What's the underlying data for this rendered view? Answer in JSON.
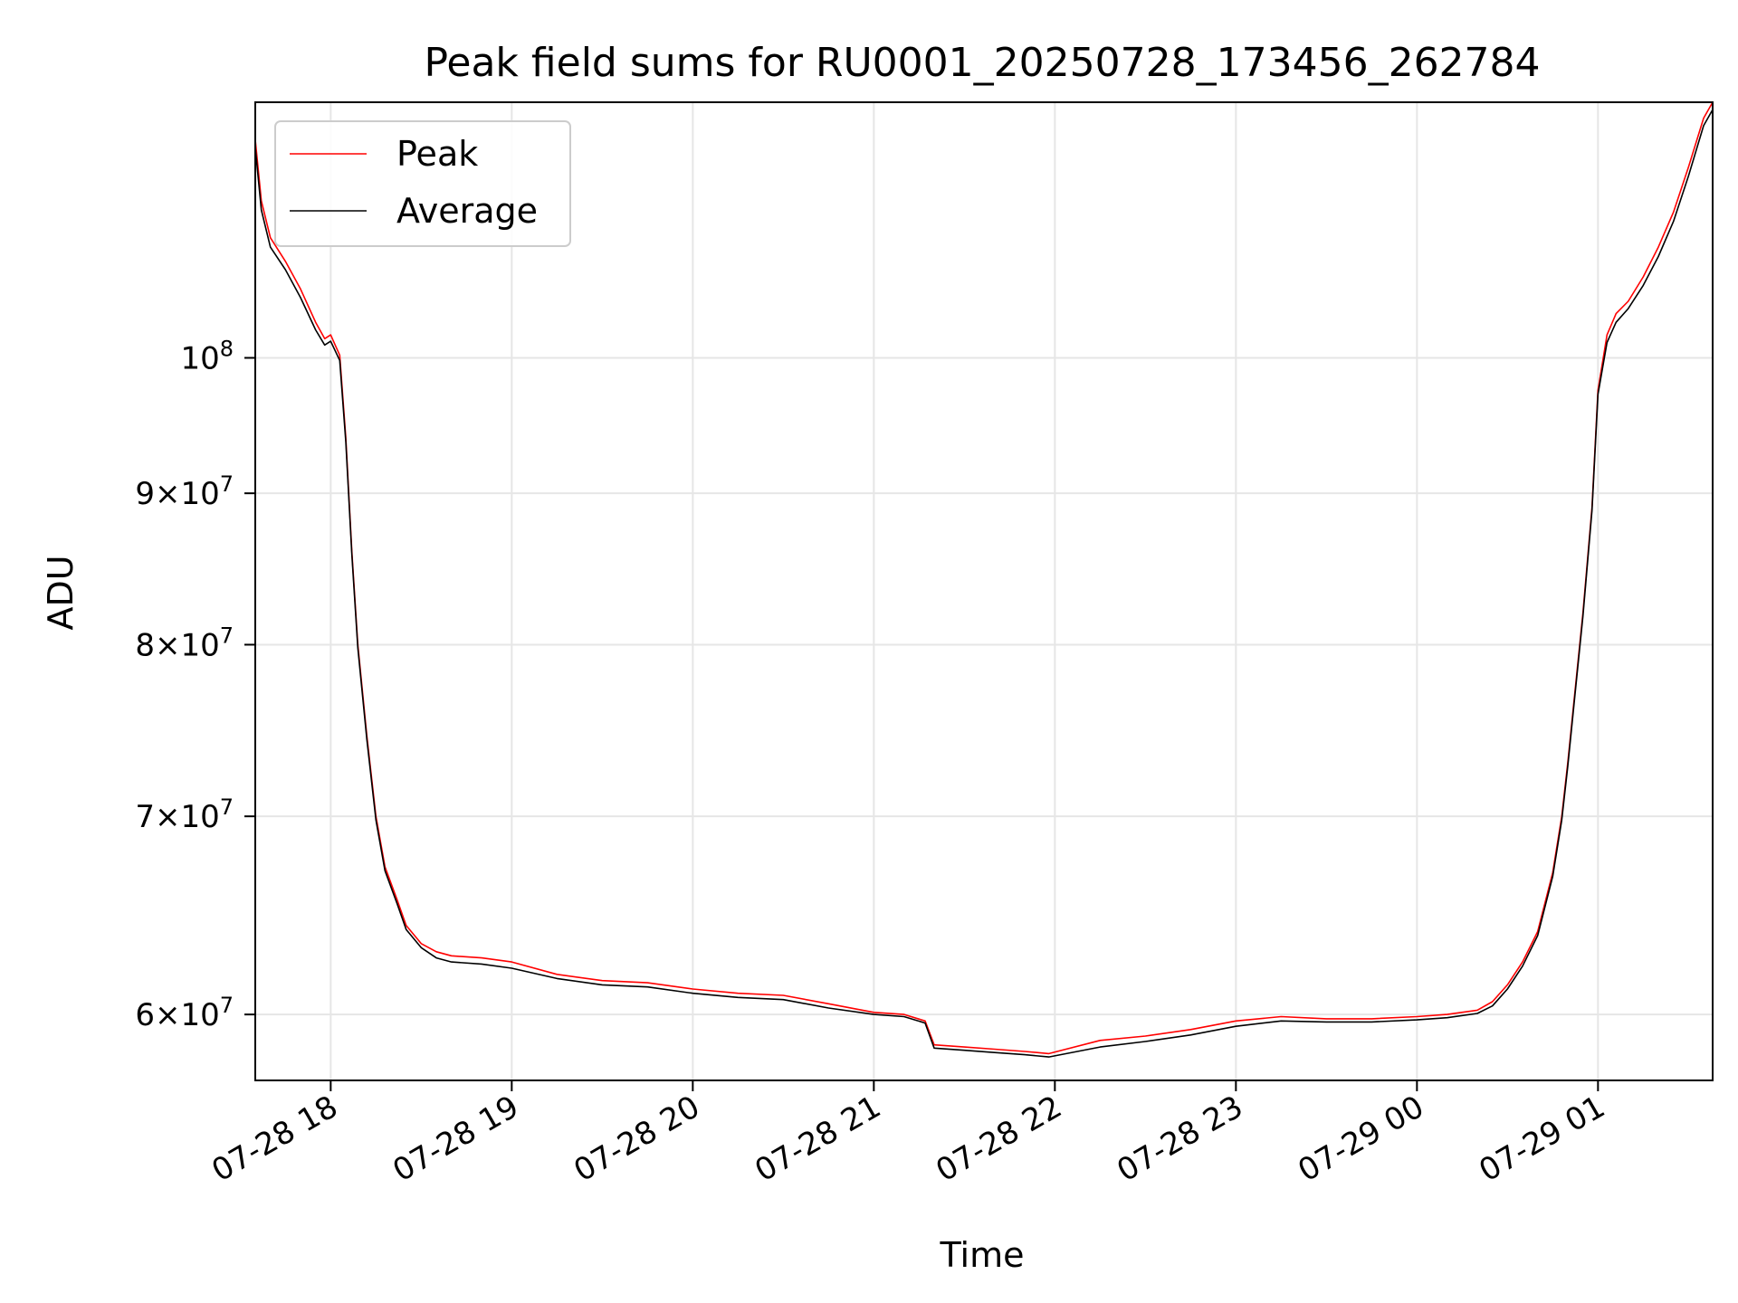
{
  "chart_data": {
    "type": "line",
    "title": "Peak field sums for RU0001_20250728_173456_262784",
    "xlabel": "Time",
    "ylabel": "ADU",
    "yscale": "log",
    "ylim": [
      57000000,
      122000000
    ],
    "xlim": [
      "07-28 17:35",
      "07-29 01:38"
    ],
    "grid": true,
    "legend_position": "upper-left",
    "x_ticks": [
      {
        "value": "07-28 18:00",
        "label": "07-28 18"
      },
      {
        "value": "07-28 19:00",
        "label": "07-28 19"
      },
      {
        "value": "07-28 20:00",
        "label": "07-28 20"
      },
      {
        "value": "07-28 21:00",
        "label": "07-28 21"
      },
      {
        "value": "07-28 22:00",
        "label": "07-28 22"
      },
      {
        "value": "07-28 23:00",
        "label": "07-28 23"
      },
      {
        "value": "07-29 00:00",
        "label": "07-29 00"
      },
      {
        "value": "07-29 01:00",
        "label": "07-29 01"
      }
    ],
    "y_ticks": [
      {
        "value": 60000000,
        "mantissa": "6",
        "base": "10",
        "exp": "7"
      },
      {
        "value": 70000000,
        "mantissa": "7",
        "base": "10",
        "exp": "7"
      },
      {
        "value": 80000000,
        "mantissa": "8",
        "base": "10",
        "exp": "7"
      },
      {
        "value": 90000000,
        "mantissa": "9",
        "base": "10",
        "exp": "7"
      },
      {
        "value": 100000000,
        "mantissa": "",
        "base": "10",
        "exp": "8"
      }
    ],
    "times": [
      "07-28 17:35",
      "07-28 17:37",
      "07-28 17:40",
      "07-28 17:45",
      "07-28 17:50",
      "07-28 17:55",
      "07-28 17:58",
      "07-28 18:00",
      "07-28 18:03",
      "07-28 18:05",
      "07-28 18:07",
      "07-28 18:09",
      "07-28 18:12",
      "07-28 18:15",
      "07-28 18:18",
      "07-28 18:22",
      "07-28 18:25",
      "07-28 18:30",
      "07-28 18:35",
      "07-28 18:40",
      "07-28 18:50",
      "07-28 19:00",
      "07-28 19:15",
      "07-28 19:30",
      "07-28 19:45",
      "07-28 20:00",
      "07-28 20:15",
      "07-28 20:30",
      "07-28 20:45",
      "07-28 21:00",
      "07-28 21:10",
      "07-28 21:17",
      "07-28 21:20",
      "07-28 21:30",
      "07-28 21:40",
      "07-28 21:50",
      "07-28 21:58",
      "07-28 22:15",
      "07-28 22:30",
      "07-28 22:45",
      "07-28 23:00",
      "07-28 23:15",
      "07-28 23:30",
      "07-28 23:45",
      "07-29 00:00",
      "07-29 00:10",
      "07-29 00:20",
      "07-29 00:25",
      "07-29 00:30",
      "07-29 00:35",
      "07-29 00:40",
      "07-29 00:45",
      "07-29 00:48",
      "07-29 00:50",
      "07-29 00:52",
      "07-29 00:55",
      "07-29 00:58",
      "07-29 01:00",
      "07-29 01:03",
      "07-29 01:06",
      "07-29 01:10",
      "07-29 01:15",
      "07-29 01:20",
      "07-29 01:25",
      "07-29 01:30",
      "07-29 01:35",
      "07-29 01:38"
    ],
    "series": [
      {
        "name": "Peak",
        "color": "#ff0000",
        "values": [
          118500000,
          113000000,
          109800000,
          107800000,
          105500000,
          102800000,
          101500000,
          101800000,
          100200000,
          94000000,
          86000000,
          80000000,
          74500000,
          70000000,
          67300000,
          65600000,
          64300000,
          63400000,
          63000000,
          62800000,
          62700000,
          62500000,
          61900000,
          61600000,
          61500000,
          61200000,
          61000000,
          60900000,
          60500000,
          60100000,
          60000000,
          59700000,
          58600000,
          58500000,
          58400000,
          58300000,
          58200000,
          58800000,
          59000000,
          59300000,
          59700000,
          59900000,
          59800000,
          59800000,
          59900000,
          60000000,
          60200000,
          60600000,
          61400000,
          62500000,
          64000000,
          67000000,
          70000000,
          73000000,
          76500000,
          82000000,
          89000000,
          97500000,
          101800000,
          103500000,
          104500000,
          106500000,
          109000000,
          112000000,
          116000000,
          120500000,
          122000000
        ]
      },
      {
        "name": "Average",
        "color": "#000000",
        "values": [
          117800000,
          112200000,
          109000000,
          107100000,
          104800000,
          102200000,
          101000000,
          101300000,
          99800000,
          93700000,
          85800000,
          79800000,
          74300000,
          69800000,
          67100000,
          65400000,
          64100000,
          63200000,
          62700000,
          62500000,
          62400000,
          62200000,
          61700000,
          61400000,
          61300000,
          61000000,
          60800000,
          60700000,
          60300000,
          60000000,
          59900000,
          59600000,
          58450000,
          58350000,
          58250000,
          58150000,
          58050000,
          58500000,
          58750000,
          59050000,
          59450000,
          59700000,
          59650000,
          59650000,
          59750000,
          59850000,
          60050000,
          60400000,
          61200000,
          62300000,
          63800000,
          66800000,
          69800000,
          72800000,
          76300000,
          81800000,
          88800000,
          97200000,
          101200000,
          102800000,
          103900000,
          105800000,
          108200000,
          111200000,
          115200000,
          119800000,
          121300000
        ]
      }
    ]
  }
}
